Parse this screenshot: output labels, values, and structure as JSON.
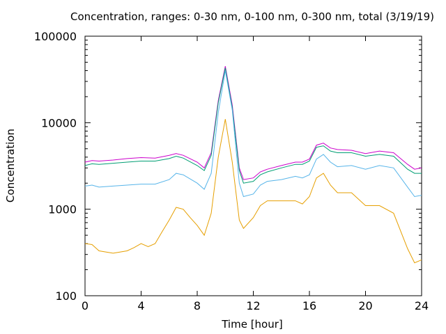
{
  "chart_data": {
    "type": "line",
    "title": "Concentration, ranges: 0-30 nm, 0-100 nm, 0-300 nm, total (3/19/19)",
    "xlabel": "Time [hour]",
    "ylabel": "Concentration",
    "xlim": [
      0,
      24
    ],
    "ylim": [
      100,
      100000
    ],
    "yscale": "log",
    "x_ticks": [
      0,
      4,
      8,
      12,
      16,
      20,
      24
    ],
    "x_tick_labels": [
      "0",
      "4",
      "8",
      "12",
      "16",
      "20",
      "24"
    ],
    "y_ticks": [
      100,
      1000,
      10000,
      100000
    ],
    "y_tick_labels": [
      "100",
      "1000",
      "10000",
      "100000"
    ],
    "grid": false,
    "legend": "none",
    "series": [
      {
        "color": "#cc00cc",
        "points": [
          [
            0,
            3500
          ],
          [
            0.5,
            3650
          ],
          [
            1,
            3600
          ],
          [
            2,
            3700
          ],
          [
            3,
            3850
          ],
          [
            4,
            3950
          ],
          [
            5,
            3900
          ],
          [
            6,
            4200
          ],
          [
            6.5,
            4400
          ],
          [
            7,
            4200
          ],
          [
            8,
            3500
          ],
          [
            8.5,
            3000
          ],
          [
            9,
            4500
          ],
          [
            9.5,
            18000
          ],
          [
            10,
            45000
          ],
          [
            10.5,
            16000
          ],
          [
            11,
            3000
          ],
          [
            11.3,
            2200
          ],
          [
            12,
            2300
          ],
          [
            12.5,
            2700
          ],
          [
            13,
            2900
          ],
          [
            14,
            3200
          ],
          [
            15,
            3500
          ],
          [
            15.5,
            3500
          ],
          [
            16,
            3800
          ],
          [
            16.5,
            5500
          ],
          [
            17,
            5800
          ],
          [
            17.5,
            5100
          ],
          [
            18,
            4900
          ],
          [
            19,
            4800
          ],
          [
            20,
            4400
          ],
          [
            21,
            4700
          ],
          [
            22,
            4500
          ],
          [
            23,
            3300
          ],
          [
            23.5,
            2900
          ],
          [
            24,
            3000
          ]
        ]
      },
      {
        "color": "#009e73",
        "points": [
          [
            0,
            3200
          ],
          [
            0.5,
            3350
          ],
          [
            1,
            3300
          ],
          [
            2,
            3400
          ],
          [
            3,
            3500
          ],
          [
            4,
            3600
          ],
          [
            5,
            3600
          ],
          [
            6,
            3850
          ],
          [
            6.5,
            4100
          ],
          [
            7,
            3900
          ],
          [
            8,
            3200
          ],
          [
            8.5,
            2800
          ],
          [
            9,
            4200
          ],
          [
            9.5,
            17000
          ],
          [
            10,
            43000
          ],
          [
            10.5,
            15000
          ],
          [
            11,
            2800
          ],
          [
            11.3,
            2000
          ],
          [
            12,
            2100
          ],
          [
            12.5,
            2500
          ],
          [
            13,
            2700
          ],
          [
            14,
            3000
          ],
          [
            15,
            3300
          ],
          [
            15.5,
            3300
          ],
          [
            16,
            3600
          ],
          [
            16.5,
            5200
          ],
          [
            17,
            5400
          ],
          [
            17.5,
            4700
          ],
          [
            18,
            4500
          ],
          [
            19,
            4500
          ],
          [
            20,
            4100
          ],
          [
            21,
            4300
          ],
          [
            22,
            4100
          ],
          [
            23,
            2900
          ],
          [
            23.5,
            2600
          ],
          [
            24,
            2600
          ]
        ]
      },
      {
        "color": "#56b4e9",
        "points": [
          [
            0,
            1850
          ],
          [
            0.5,
            1900
          ],
          [
            1,
            1800
          ],
          [
            2,
            1850
          ],
          [
            3,
            1900
          ],
          [
            4,
            1950
          ],
          [
            5,
            1950
          ],
          [
            6,
            2200
          ],
          [
            6.5,
            2600
          ],
          [
            7,
            2500
          ],
          [
            8,
            2000
          ],
          [
            8.5,
            1700
          ],
          [
            9,
            2600
          ],
          [
            9.5,
            13000
          ],
          [
            10,
            40000
          ],
          [
            10.5,
            14000
          ],
          [
            11,
            2000
          ],
          [
            11.3,
            1400
          ],
          [
            12,
            1500
          ],
          [
            12.5,
            1900
          ],
          [
            13,
            2100
          ],
          [
            14,
            2200
          ],
          [
            15,
            2400
          ],
          [
            15.5,
            2300
          ],
          [
            16,
            2500
          ],
          [
            16.5,
            3800
          ],
          [
            17,
            4300
          ],
          [
            17.5,
            3500
          ],
          [
            18,
            3100
          ],
          [
            19,
            3200
          ],
          [
            20,
            2900
          ],
          [
            21,
            3200
          ],
          [
            22,
            3000
          ],
          [
            23,
            1800
          ],
          [
            23.5,
            1400
          ],
          [
            24,
            1450
          ]
        ]
      },
      {
        "color": "#e69f00",
        "points": [
          [
            0,
            400
          ],
          [
            0.5,
            390
          ],
          [
            1,
            330
          ],
          [
            2,
            310
          ],
          [
            3,
            330
          ],
          [
            3.5,
            360
          ],
          [
            4,
            400
          ],
          [
            4.5,
            370
          ],
          [
            5,
            400
          ],
          [
            5.5,
            550
          ],
          [
            6,
            750
          ],
          [
            6.5,
            1050
          ],
          [
            7,
            1000
          ],
          [
            7.5,
            800
          ],
          [
            8,
            650
          ],
          [
            8.5,
            500
          ],
          [
            9,
            900
          ],
          [
            9.5,
            4000
          ],
          [
            10,
            11000
          ],
          [
            10.5,
            3500
          ],
          [
            11,
            750
          ],
          [
            11.3,
            600
          ],
          [
            12,
            800
          ],
          [
            12.5,
            1100
          ],
          [
            13,
            1250
          ],
          [
            14,
            1250
          ],
          [
            15,
            1250
          ],
          [
            15.5,
            1150
          ],
          [
            16,
            1400
          ],
          [
            16.5,
            2300
          ],
          [
            17,
            2600
          ],
          [
            17.5,
            1900
          ],
          [
            18,
            1550
          ],
          [
            19,
            1550
          ],
          [
            20,
            1100
          ],
          [
            21,
            1100
          ],
          [
            22,
            900
          ],
          [
            23,
            350
          ],
          [
            23.5,
            240
          ],
          [
            24,
            260
          ]
        ]
      }
    ]
  }
}
